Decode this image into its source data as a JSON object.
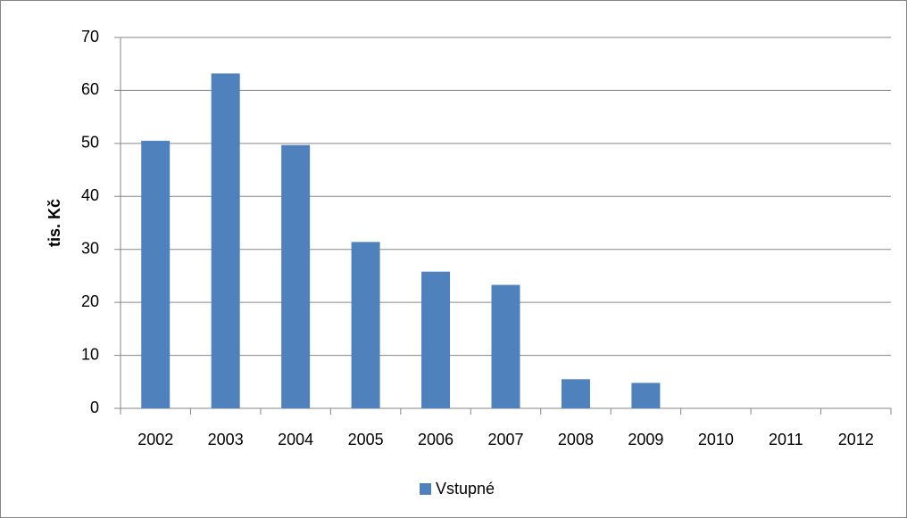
{
  "chart_data": {
    "type": "bar",
    "y_label": "tis. Kč",
    "categories": [
      "2002",
      "2003",
      "2004",
      "2005",
      "2006",
      "2007",
      "2008",
      "2009",
      "2010",
      "2011",
      "2012"
    ],
    "series": [
      {
        "name": "Vstupné",
        "color": "#4f81bd",
        "values": [
          50.5,
          63.2,
          49.7,
          31.4,
          25.8,
          23.3,
          5.5,
          4.8,
          0,
          0,
          0
        ]
      }
    ],
    "ylim": [
      0,
      70
    ],
    "yticks": [
      0,
      10,
      20,
      30,
      40,
      50,
      60,
      70
    ],
    "grid": true,
    "legend": "bottom"
  }
}
